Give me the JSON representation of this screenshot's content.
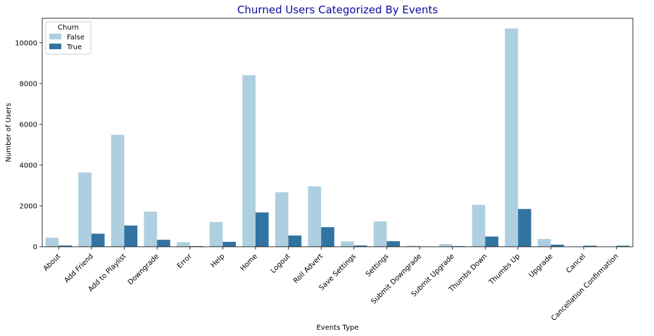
{
  "chart_data": {
    "type": "bar",
    "title": "Churned Users Categorized By Events",
    "title_color": "#0a0aa0",
    "xlabel": "Events Type",
    "ylabel": "Number of Users",
    "ylim": [
      0,
      11200
    ],
    "yticks": [
      0,
      2000,
      4000,
      6000,
      8000,
      10000
    ],
    "grid": false,
    "legend_title": "Churn",
    "legend_position": "top-left",
    "categories": [
      "About",
      "Add Friend",
      "Add to Playlist",
      "Downgrade",
      "Error",
      "Help",
      "Home",
      "Logout",
      "Roll Advert",
      "Save Settings",
      "Settings",
      "Submit Downgrade",
      "Submit Upgrade",
      "Thumbs Down",
      "Thumbs Up",
      "Upgrade",
      "Cancel",
      "Cancellation Confirmation"
    ],
    "series": [
      {
        "name": "False",
        "color": "#aecfe0",
        "values": [
          440,
          3640,
          5490,
          1720,
          220,
          1210,
          8410,
          2670,
          2960,
          260,
          1240,
          50,
          130,
          2050,
          10700,
          380,
          0,
          0
        ]
      },
      {
        "name": "True",
        "color": "#3274a1",
        "values": [
          60,
          640,
          1040,
          340,
          30,
          240,
          1680,
          550,
          960,
          60,
          270,
          10,
          30,
          500,
          1850,
          100,
          50,
          50
        ]
      }
    ]
  }
}
